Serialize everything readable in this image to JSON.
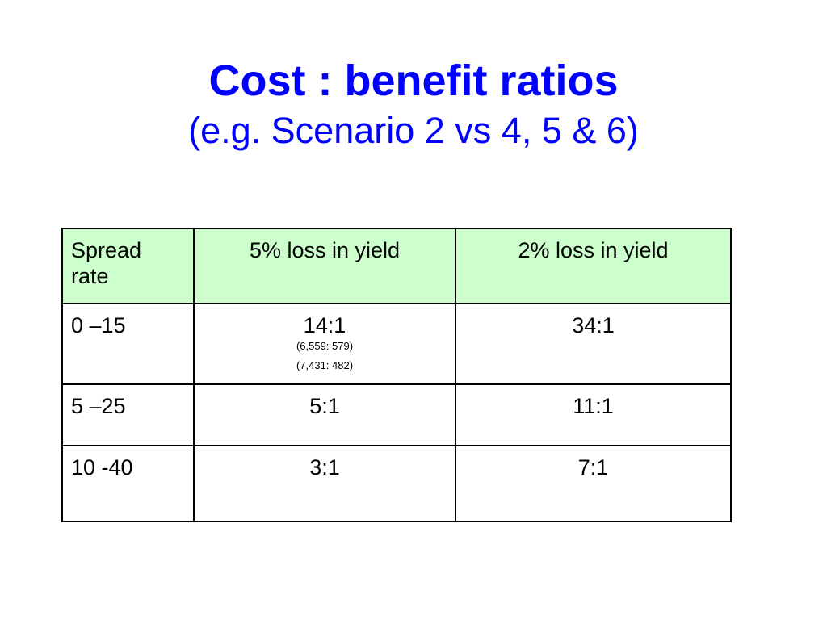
{
  "title": {
    "main": "Cost : benefit ratios",
    "sub": "(e.g. Scenario 2 vs 4, 5 & 6)"
  },
  "table": {
    "header": {
      "spread_rate": "Spread rate",
      "loss5": "5% loss in yield",
      "loss2": "2% loss in yield"
    },
    "rows": [
      {
        "spread_rate": "0 –15",
        "loss5": "14:1",
        "loss5_notes": [
          "(6,559: 579)",
          "(7,431: 482)"
        ],
        "loss2": "34:1"
      },
      {
        "spread_rate": "5 –25",
        "loss5": "5:1",
        "loss2": "11:1"
      },
      {
        "spread_rate": "10 -40",
        "loss5": "3:1",
        "loss2": "7:1"
      }
    ]
  },
  "colors": {
    "title": "#0000ff",
    "header_bg": "#ccffcc",
    "border": "#000000"
  }
}
